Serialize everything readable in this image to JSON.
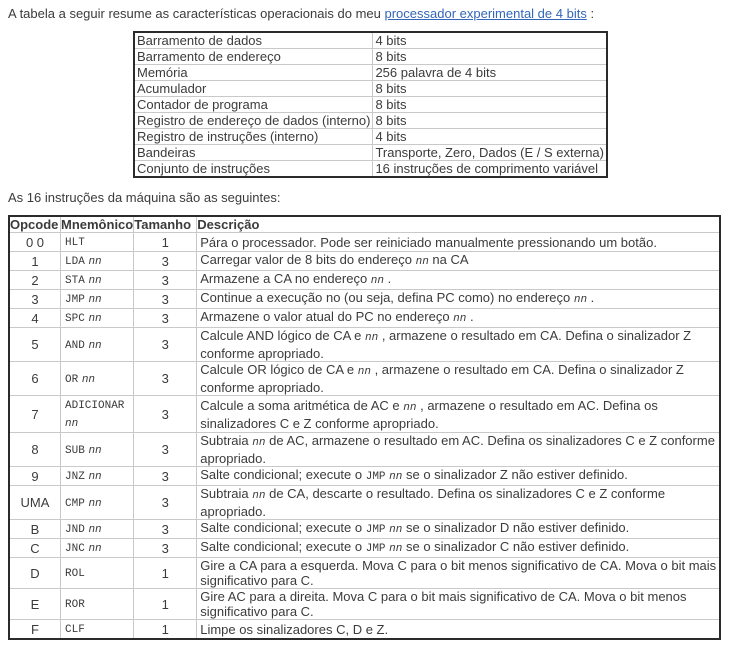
{
  "colors": {
    "link": "#3366bb",
    "text": "#3b3b3b",
    "outer_border": "#2b2b2b",
    "inner_border": "#c9c9c9"
  },
  "intro": {
    "prefix": "A tabela a seguir resume as características operacionais do meu ",
    "link_text": "processador experimental de 4 bits",
    "suffix": " :"
  },
  "specs_table": {
    "rows": [
      {
        "label": "Barramento de dados",
        "value": "4 bits"
      },
      {
        "label": "Barramento de endereço",
        "value": "8 bits"
      },
      {
        "label": "Memória",
        "value": "256 palavra de 4 bits"
      },
      {
        "label": "Acumulador",
        "value": "8 bits"
      },
      {
        "label": "Contador de programa",
        "value": "8 bits"
      },
      {
        "label": "Registro de endereço de dados (interno)",
        "value": "8 bits"
      },
      {
        "label": "Registro de instruções (interno)",
        "value": "4 bits"
      },
      {
        "label": "Bandeiras",
        "value": "Transporte, Zero, Dados (E / S externa)"
      },
      {
        "label": "Conjunto de instruções",
        "value": "16 instruções de comprimento variável"
      }
    ]
  },
  "instructions_intro": "As 16 instruções da máquina são as seguintes:",
  "instructions_table": {
    "headers": [
      "Opcode",
      "Mnemônico",
      "Tamanho",
      "Descrição"
    ],
    "rows": [
      {
        "opcode": "0 0",
        "mnemonic": "HLT",
        "operand": "",
        "size": "1",
        "description": "Pára o processador. Pode ser reiniciado manualmente pressionando um botão."
      },
      {
        "opcode": "1",
        "mnemonic": "LDA",
        "operand": "nn",
        "size": "3",
        "description": "Carregar valor de 8 bits do endereço {nn} na CA"
      },
      {
        "opcode": "2",
        "mnemonic": "STA",
        "operand": "nn",
        "size": "3",
        "description": "Armazene a CA no endereço {nn} ."
      },
      {
        "opcode": "3",
        "mnemonic": "JMP",
        "operand": "nn",
        "size": "3",
        "description": "Continue a execução no (ou seja, defina PC como) no endereço {nn} ."
      },
      {
        "opcode": "4",
        "mnemonic": "SPC",
        "operand": "nn",
        "size": "3",
        "description": "Armazene o valor atual do PC no endereço {nn} ."
      },
      {
        "opcode": "5",
        "mnemonic": "AND",
        "operand": "nn",
        "size": "3",
        "description": "Calcule AND lógico de CA e {nn} , armazene o resultado em CA. Defina o sinalizador Z conforme apropriado."
      },
      {
        "opcode": "6",
        "mnemonic": "OR",
        "operand": "nn",
        "size": "3",
        "description": "Calcule OR lógico de CA e {nn} , armazene o resultado em CA. Defina o sinalizador Z conforme apropriado."
      },
      {
        "opcode": "7",
        "mnemonic": "ADICIONAR",
        "operand": "nn",
        "size": "3",
        "description": "Calcule a soma aritmética de AC e {nn} , armazene o resultado em AC. Defina os sinalizadores C e Z conforme apropriado."
      },
      {
        "opcode": "8",
        "mnemonic": "SUB",
        "operand": "nn",
        "size": "3",
        "description": "Subtraia {nn} de AC, armazene o resultado em AC. Defina os sinalizadores C e Z conforme apropriado."
      },
      {
        "opcode": "9",
        "mnemonic": "JNZ",
        "operand": "nn",
        "size": "3",
        "description": "Salte condicional; execute o {JMP} {nn} se o sinalizador Z não estiver definido."
      },
      {
        "opcode": "UMA",
        "mnemonic": "CMP",
        "operand": "nn",
        "size": "3",
        "description": "Subtraia {nn} de CA, descarte o resultado. Defina os sinalizadores C e Z conforme apropriado."
      },
      {
        "opcode": "B",
        "mnemonic": "JND",
        "operand": "nn",
        "size": "3",
        "description": "Salte condicional; execute o {JMP} {nn} se o sinalizador D não estiver definido."
      },
      {
        "opcode": "C",
        "mnemonic": "JNC",
        "operand": "nn",
        "size": "3",
        "description": "Salte condicional; execute o {JMP} {nn} se o sinalizador C não estiver definido."
      },
      {
        "opcode": "D",
        "mnemonic": "ROL",
        "operand": "",
        "size": "1",
        "description": "Gire a CA para a esquerda. Mova C para o bit menos significativo de CA. Mova o bit mais significativo para C."
      },
      {
        "opcode": "E",
        "mnemonic": "ROR",
        "operand": "",
        "size": "1",
        "description": "Gire AC para a direita. Mova C para o bit mais significativo de CA. Mova o bit menos significativo para C."
      },
      {
        "opcode": "F",
        "mnemonic": "CLF",
        "operand": "",
        "size": "1",
        "description": "Limpe os sinalizadores C, D e Z."
      }
    ]
  }
}
